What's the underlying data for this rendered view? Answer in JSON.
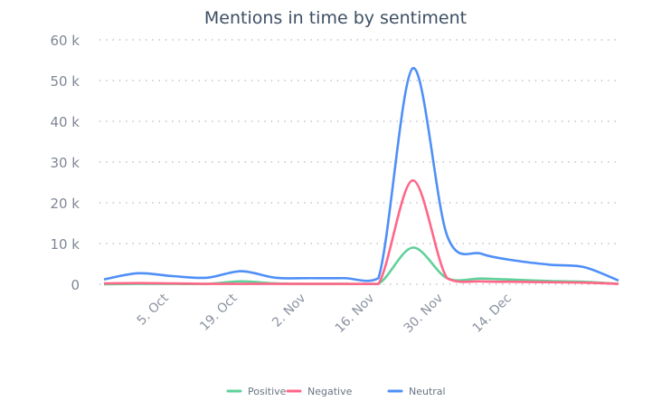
{
  "chart_data": {
    "type": "line",
    "title": "Mentions in time by sentiment",
    "xlabel": "",
    "ylabel": "",
    "x": [
      "2020-09-21",
      "2020-09-28",
      "2020-10-05",
      "2020-10-12",
      "2020-10-19",
      "2020-10-26",
      "2020-11-02",
      "2020-11-09",
      "2020-11-16",
      "2020-11-23",
      "2020-11-30",
      "2020-12-07",
      "2020-12-14",
      "2020-12-21",
      "2020-12-28",
      "2021-01-04"
    ],
    "x_ticks": [
      {
        "date": "2020-10-05",
        "label": "5. Oct"
      },
      {
        "date": "2020-10-19",
        "label": "19. Oct"
      },
      {
        "date": "2020-11-02",
        "label": "2. Nov"
      },
      {
        "date": "2020-11-16",
        "label": "16. Nov"
      },
      {
        "date": "2020-11-30",
        "label": "30. Nov"
      },
      {
        "date": "2020-12-14",
        "label": "14. Dec"
      }
    ],
    "y_ticks": [
      {
        "value": 0,
        "label": "0"
      },
      {
        "value": 10000,
        "label": "10 k"
      },
      {
        "value": 20000,
        "label": "20 k"
      },
      {
        "value": 30000,
        "label": "30 k"
      },
      {
        "value": 40000,
        "label": "40 k"
      },
      {
        "value": 50000,
        "label": "50 k"
      },
      {
        "value": 60000,
        "label": "60 k"
      }
    ],
    "ylim": [
      0,
      60000
    ],
    "grid": "horizontal dotted",
    "legend_placement": "bottom",
    "series": [
      {
        "name": "Positive",
        "color": "#5fd19a",
        "values": [
          0,
          100,
          100,
          100,
          700,
          200,
          100,
          100,
          100,
          9000,
          1500,
          1400,
          1100,
          800,
          600,
          100
        ]
      },
      {
        "name": "Negative",
        "color": "#ff6688",
        "values": [
          200,
          300,
          200,
          100,
          100,
          100,
          100,
          100,
          100,
          25500,
          1500,
          700,
          600,
          500,
          400,
          100
        ]
      },
      {
        "name": "Neutral",
        "color": "#4f8ff7",
        "values": [
          1200,
          2700,
          2000,
          1600,
          3200,
          1600,
          1500,
          1500,
          1500,
          53000,
          12000,
          7500,
          5800,
          4800,
          4200,
          900
        ]
      }
    ]
  }
}
